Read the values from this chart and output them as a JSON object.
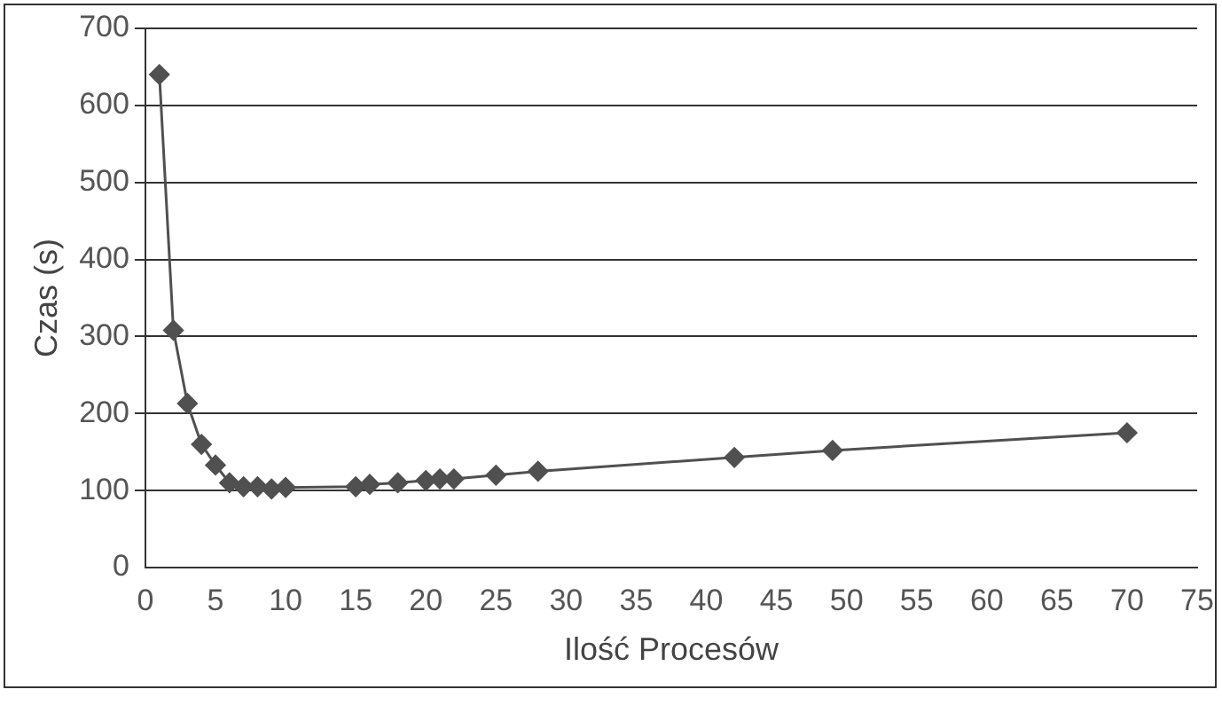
{
  "chart_data": {
    "type": "line",
    "xlabel": "Ilość Procesów",
    "ylabel": "Czas (s)",
    "x": [
      1,
      2,
      3,
      4,
      5,
      6,
      7,
      8,
      9,
      10,
      15,
      16,
      18,
      20,
      21,
      22,
      25,
      28,
      42,
      49,
      70
    ],
    "series": [
      {
        "color": "#505050",
        "values": [
          640,
          308,
          213,
          160,
          133,
          110,
          105,
          105,
          102,
          104,
          105,
          108,
          110,
          113,
          115,
          115,
          120,
          125,
          143,
          152,
          175
        ]
      }
    ],
    "xlim": [
      0,
      75
    ],
    "xticks": [
      0,
      5,
      10,
      15,
      20,
      25,
      30,
      35,
      40,
      45,
      50,
      55,
      60,
      65,
      70,
      75
    ],
    "ylim": [
      0,
      700
    ],
    "yticks": [
      0,
      100,
      200,
      300,
      400,
      500,
      600,
      700
    ],
    "grid": "y",
    "marker": "diamond",
    "line_style": "solid"
  }
}
